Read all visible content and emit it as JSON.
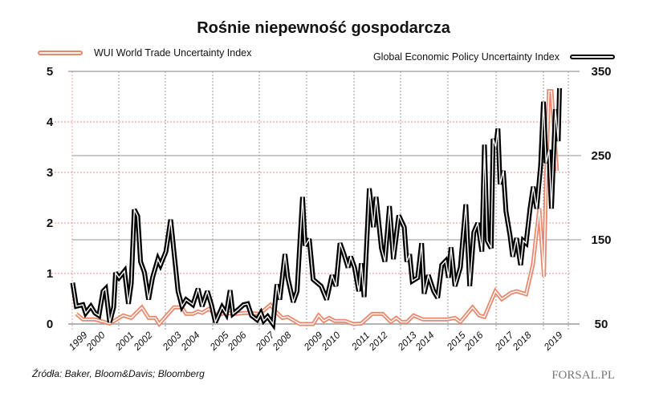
{
  "chart_data": {
    "type": "line",
    "title": "Rośnie niepewność gospodarcza",
    "legend": {
      "placement": "top"
    },
    "x_tick_labels": [
      "1999",
      "2000",
      "2001",
      "2002",
      "2003",
      "2004",
      "2005",
      "2006",
      "2007",
      "2008",
      "2009",
      "2010",
      "2011",
      "2012",
      "2013",
      "2014",
      "2015",
      "2016",
      "2017",
      "2018",
      "2019"
    ],
    "y_left": {
      "ticks": [
        "0",
        "1",
        "2",
        "3",
        "4",
        "5"
      ],
      "ylim": [
        0,
        5
      ]
    },
    "y_right": {
      "ticks": [
        "50",
        "150",
        "250",
        "350"
      ],
      "ylim": [
        50,
        350
      ]
    },
    "grid": true,
    "series": [
      {
        "name": "WUI World Trade Uncertainty Index",
        "axis": "left",
        "color": "#e8896e",
        "x": [
          1997.19,
          1997.49,
          1998.05,
          1998.73,
          1999.35,
          1999.72,
          2000.21,
          2000.52,
          2000.83,
          2001.01,
          2001.69,
          2002.06,
          2002.25,
          2002.56,
          2002.8,
          2002.99,
          2003.3,
          2003.67,
          2004.04,
          2004.53,
          2005.02,
          2005.64,
          2006.14,
          2006.44,
          2006.69,
          2006.94,
          2007.49,
          2008.11,
          2008.36,
          2008.6,
          2008.85,
          2009.1,
          2009.59,
          2009.96,
          2010.33,
          2010.83,
          2011.32,
          2011.69,
          2011.94,
          2012.19,
          2012.43,
          2012.74,
          2013.17,
          2013.67,
          2014.28,
          2014.65,
          2014.9,
          2015.46,
          2015.77,
          2016.01,
          2016.51,
          2016.81,
          2017.25,
          2017.49,
          2017.93,
          2018.24,
          2018.54,
          2018.75,
          2018.85,
          2018.98,
          2019.1,
          2019.35
        ],
        "y": [
          0.2,
          0.09,
          0.09,
          0.01,
          0.17,
          0.12,
          0.33,
          0.12,
          0.12,
          0,
          0.33,
          0.33,
          0.2,
          0.2,
          0.25,
          0.22,
          0.3,
          0.17,
          0.22,
          0.2,
          0.22,
          0.2,
          0.38,
          0.22,
          0.12,
          0.14,
          0,
          0,
          0.17,
          0.06,
          0.12,
          0.06,
          0.06,
          0,
          0.01,
          0.2,
          0.2,
          0.04,
          0.12,
          0.04,
          0.04,
          0.17,
          0.09,
          0.09,
          0.09,
          0.12,
          0.04,
          0.33,
          0.17,
          0.14,
          0.65,
          0.49,
          0.62,
          0.65,
          0.59,
          1.17,
          2.29,
          0.94,
          2.87,
          4.61,
          4.61,
          3.03
        ]
      },
      {
        "name": "Global Economic Policy Uncertainty Index",
        "axis": "right",
        "color": "#000000",
        "x": [
          1997.02,
          1997.19,
          1997.49,
          1997.62,
          1997.86,
          1998.05,
          1998.23,
          1998.42,
          1998.54,
          1998.73,
          1998.91,
          1999.0,
          1999.16,
          1999.41,
          1999.59,
          1999.72,
          1999.86,
          2000.02,
          2000.15,
          2000.33,
          2000.52,
          2000.7,
          2000.95,
          2001.07,
          2001.32,
          2001.54,
          2001.69,
          2001.88,
          2002.06,
          2002.25,
          2002.56,
          2002.8,
          2002.99,
          2003.23,
          2003.42,
          2003.6,
          2003.91,
          2004.1,
          2004.28,
          2004.41,
          2004.65,
          2004.9,
          2005.09,
          2005.27,
          2005.52,
          2005.7,
          2005.83,
          2006.01,
          2006.26,
          2006.44,
          2006.57,
          2006.81,
          2006.94,
          2007.19,
          2007.37,
          2007.62,
          2007.74,
          2007.93,
          2008.11,
          2008.48,
          2008.73,
          2008.98,
          2009.16,
          2009.35,
          2009.53,
          2009.72,
          2009.84,
          2010.02,
          2010.21,
          2010.33,
          2010.46,
          2010.7,
          2010.89,
          2011.01,
          2011.26,
          2011.42,
          2011.63,
          2011.81,
          2012.06,
          2012.31,
          2012.43,
          2012.56,
          2012.68,
          2012.93,
          2013.11,
          2013.23,
          2013.42,
          2013.67,
          2013.85,
          2014.04,
          2014.22,
          2014.35,
          2014.47,
          2014.65,
          2014.9,
          2015.15,
          2015.33,
          2015.52,
          2015.7,
          2015.89,
          2016.01,
          2016.14,
          2016.32,
          2016.41,
          2016.53,
          2016.63,
          2016.73,
          2016.88,
          2017.0,
          2017.19,
          2017.31,
          2017.49,
          2017.68,
          2017.8,
          2017.93,
          2018.11,
          2018.26,
          2018.42,
          2018.6,
          2018.73,
          2018.85,
          2018.98,
          2019.1,
          2019.28,
          2019.41,
          2019.47
        ],
        "y": [
          99,
          71,
          73,
          63,
          71,
          63,
          60,
          89,
          92,
          52,
          70,
          111,
          105,
          113,
          74,
          98,
          186,
          178,
          124,
          111,
          79,
          105,
          127,
          120,
          136,
          174,
          136,
          89,
          71,
          79,
          73,
          92,
          71,
          89,
          73,
          52,
          70,
          62,
          90,
          62,
          67,
          73,
          74,
          60,
          55,
          63,
          54,
          59,
          50,
          97,
          79,
          133,
          105,
          76,
          89,
          201,
          143,
          151,
          103,
          95,
          79,
          108,
          95,
          146,
          133,
          117,
          130,
          117,
          89,
          122,
          82,
          211,
          165,
          201,
          140,
          124,
          190,
          127,
          179,
          165,
          124,
          133,
          101,
          105,
          146,
          86,
          108,
          89,
          81,
          120,
          125,
          105,
          141,
          95,
          117,
          192,
          95,
          159,
          170,
          136,
          263,
          149,
          140,
          270,
          260,
          282,
          216,
          232,
          184,
          155,
          130,
          152,
          120,
          149,
          146,
          187,
          213,
          187,
          238,
          314,
          241,
          257,
          187,
          305,
          267,
          330
        ]
      }
    ]
  },
  "footer": {
    "source": "Źródła: Baker, Bloom&Davis; Bloomberg",
    "logo": "FORSAL.PL"
  }
}
